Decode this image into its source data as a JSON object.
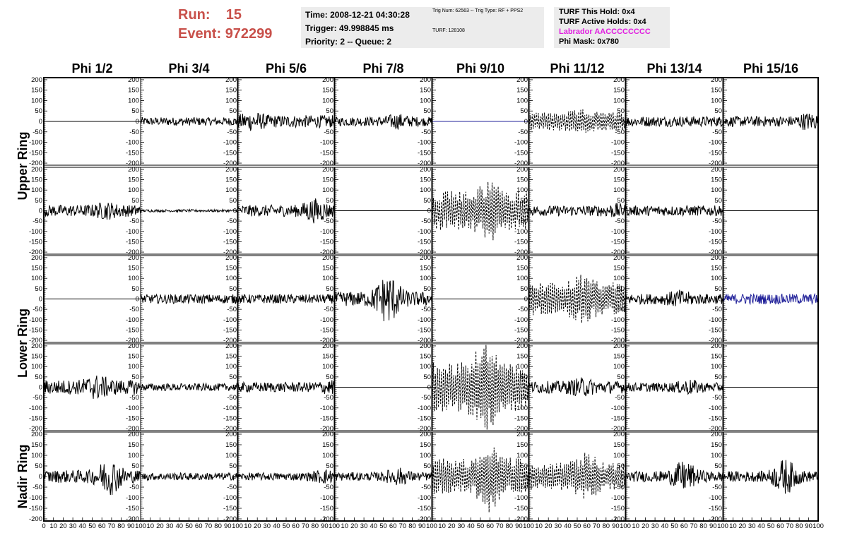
{
  "header": {
    "run_label": "Run:",
    "run_value": "15",
    "event_label": "Event:",
    "event_value": "972299"
  },
  "time_box": {
    "time": "Time: 2008-12-21 04:30:28",
    "trigger": "Trigger: 49.998845 ms",
    "priority": "Priority: 2 -- Queue: 2"
  },
  "trig_box": {
    "line1": "Trig Num: 62563 -- Trig Type: RF + PPS2",
    "line2": "TURF: 128108"
  },
  "turf_box": {
    "hold": "TURF This Hold: 0x4",
    "active": "TURF Active Holds: 0x4",
    "labrador": "Labrador AACCCCCCCC",
    "phi_mask": "Phi Mask: 0x780",
    "labrador_color": "#e11ee1"
  },
  "chart_data": {
    "type": "line",
    "columns": [
      "Phi 1/2",
      "Phi 3/4",
      "Phi 5/6",
      "Phi 7/8",
      "Phi 9/10",
      "Phi 11/12",
      "Phi 13/14",
      "Phi 15/16"
    ],
    "ring_labels": [
      {
        "text": "Upper Ring",
        "rows": [
          0,
          1
        ]
      },
      {
        "text": "Lower Ring",
        "rows": [
          2,
          3
        ]
      },
      {
        "text": "Nadir Ring",
        "rows": [
          4,
          4
        ]
      }
    ],
    "ylim": [
      -210,
      210
    ],
    "yticks": [
      200,
      150,
      100,
      50,
      0,
      -50,
      -100,
      -150,
      -200
    ],
    "xlim": [
      0,
      100
    ],
    "xticks_first": [
      "0",
      "10",
      "20",
      "30",
      "40",
      "50",
      "60",
      "70",
      "80",
      "90",
      "100"
    ],
    "xticks_other": [
      "10",
      "20",
      "30",
      "40",
      "50",
      "60",
      "70",
      "80",
      "90",
      "100"
    ],
    "colors": {
      "trace": "#000000",
      "masked": "#22229a",
      "frame": "#000000"
    },
    "note_style": "flat = no signal, dashed = Phi 9/10 & 11/12 triggered pair",
    "panels": [
      [
        {
          "a": 0,
          "s": "flat"
        },
        {
          "a": 20,
          "s": "noise"
        },
        {
          "a": 30,
          "s": "noise",
          "p": 15,
          "g": 1.6
        },
        {
          "a": 22,
          "s": "noise",
          "p": 65,
          "g": 1.8
        },
        {
          "a": 0,
          "s": "flat",
          "c": "masked"
        },
        {
          "a": 45,
          "s": "dash",
          "p": 55,
          "g": 1.3
        },
        {
          "a": 25,
          "s": "noise"
        },
        {
          "a": 25,
          "s": "noise",
          "p": 90,
          "g": 1.8
        }
      ],
      [
        {
          "a": 28,
          "s": "noise",
          "p": 65,
          "g": 1.6
        },
        {
          "a": 6,
          "s": "noise"
        },
        {
          "a": 28,
          "s": "noise",
          "p": 80,
          "g": 2.2
        },
        {
          "a": 0,
          "s": "flat"
        },
        {
          "a": 95,
          "s": "dash",
          "p": 60,
          "g": 1.6
        },
        {
          "a": 25,
          "s": "noise",
          "p": 90,
          "g": 1.5
        },
        {
          "a": 25,
          "s": "noise"
        },
        {
          "a": 0,
          "s": "flat"
        }
      ],
      [
        {
          "a": 0,
          "s": "flat"
        },
        {
          "a": 22,
          "s": "noise"
        },
        {
          "a": 22,
          "s": "noise"
        },
        {
          "a": 35,
          "s": "noise",
          "p": 55,
          "g": 3.6
        },
        {
          "a": 0,
          "s": "flat"
        },
        {
          "a": 80,
          "s": "dash",
          "p": 55,
          "g": 1.5
        },
        {
          "a": 25,
          "s": "noise",
          "p": 55,
          "g": 1.8
        },
        {
          "a": 25,
          "s": "noise",
          "c": "masked"
        }
      ],
      [
        {
          "a": 35,
          "s": "noise",
          "p": 55,
          "g": 1.8
        },
        {
          "a": 18,
          "s": "noise"
        },
        {
          "a": 24,
          "s": "noise",
          "p": 95,
          "g": 1.5
        },
        {
          "a": 0,
          "s": "flat"
        },
        {
          "a": 120,
          "s": "dash",
          "p": 55,
          "g": 2.0
        },
        {
          "a": 30,
          "s": "noise",
          "p": 55,
          "g": 1.6
        },
        {
          "a": 22,
          "s": "noise",
          "p": 65,
          "g": 1.8
        },
        {
          "a": 0,
          "s": "flat"
        }
      ],
      [
        {
          "a": 30,
          "s": "noise",
          "p": 68,
          "g": 3.0
        },
        {
          "a": 18,
          "s": "noise"
        },
        {
          "a": 18,
          "s": "noise",
          "p": 90,
          "g": 2.0
        },
        {
          "a": 20,
          "s": "noise",
          "p": 65,
          "g": 2.2
        },
        {
          "a": 85,
          "s": "dash",
          "p": 60,
          "g": 2.0
        },
        {
          "a": 65,
          "s": "dash",
          "p": 60,
          "g": 1.8
        },
        {
          "a": 25,
          "s": "noise",
          "p": 60,
          "g": 3.0
        },
        {
          "a": 25,
          "s": "noise",
          "p": 65,
          "g": 3.4
        }
      ]
    ]
  }
}
